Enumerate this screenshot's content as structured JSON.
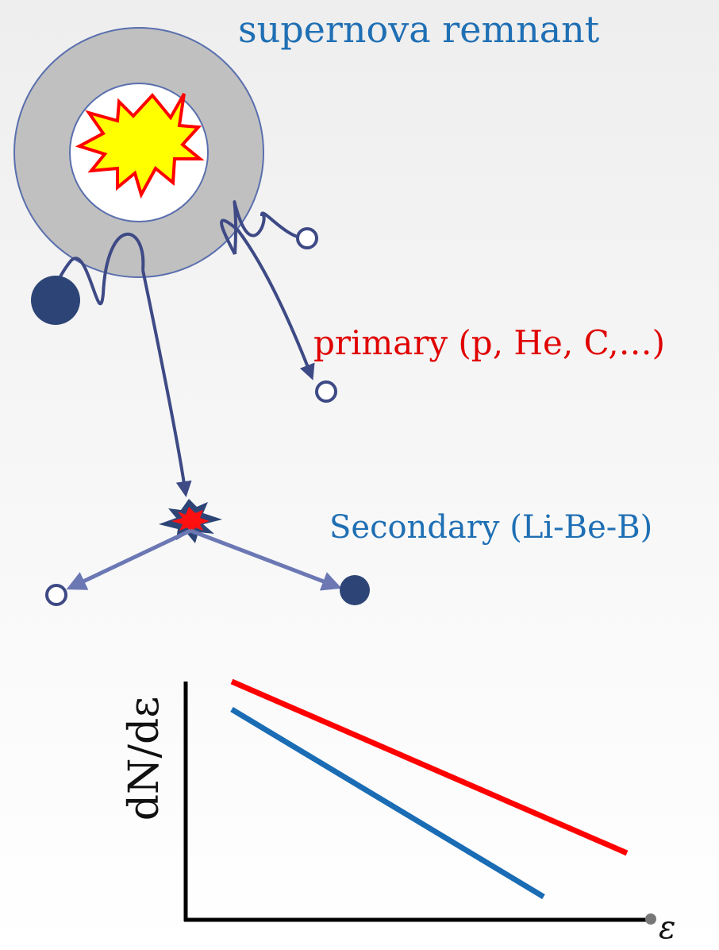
{
  "labels": {
    "title": "supernova remnant",
    "primary": "primary (p, He, C,…)",
    "secondary": "Secondary (Li-Be-B)",
    "ylabel": "dN/dε",
    "xlabel": "ε"
  },
  "colors": {
    "remnant_shell": "#c0c0c0",
    "shell_outline": "#5a6fae",
    "explosion_fill": "#ffff00",
    "explosion_stroke": "#ff0000",
    "trajectory": "#3e4a85",
    "secondary_trajectory": "#6b78b4",
    "particle": "#2d4576",
    "primary_line": "#ff0000",
    "secondary_line": "#1a6cb4",
    "axis": "#000000"
  },
  "spectrum": {
    "lines": [
      {
        "series": "primary",
        "color_key": "primary_line"
      },
      {
        "series": "secondary",
        "color_key": "secondary_line"
      }
    ]
  }
}
